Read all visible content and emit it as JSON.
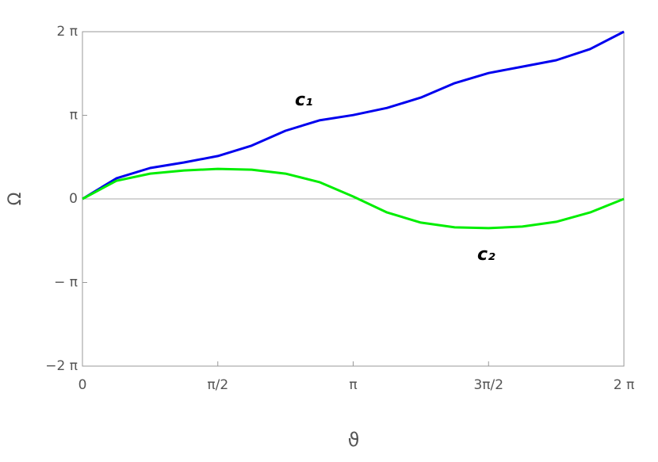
{
  "chart_data": {
    "type": "line",
    "x_label": "ϑ",
    "y_label": "Ω",
    "x": [
      0,
      0.3927,
      0.7854,
      1.1781,
      1.5708,
      1.9635,
      2.3562,
      2.7489,
      3.1416,
      3.5343,
      3.927,
      4.3197,
      4.7124,
      5.1051,
      5.4978,
      5.8905,
      6.2832
    ],
    "series": [
      {
        "color": "#0000ee",
        "values": [
          0,
          0.77,
          1.16,
          1.37,
          1.61,
          2.0,
          2.56,
          2.95,
          3.15,
          3.42,
          3.81,
          4.35,
          4.73,
          4.97,
          5.21,
          5.63,
          6.2832
        ]
      },
      {
        "color": "#00ee00",
        "values": [
          0,
          0.68,
          0.95,
          1.07,
          1.13,
          1.1,
          0.95,
          0.63,
          0.09,
          -0.51,
          -0.89,
          -1.07,
          -1.1,
          -1.04,
          -0.86,
          -0.51,
          0
        ]
      }
    ],
    "annotations": [
      "c₁",
      "c₂"
    ],
    "xlim": [
      0,
      6.2832
    ],
    "ylim": [
      -6.2832,
      6.2832
    ],
    "xticks": [
      0,
      {
        "value": 1.5708,
        "label": "π/2"
      },
      {
        "value": 3.1416,
        "label": "π"
      },
      {
        "value": 4.7124,
        "label": "3π/2"
      },
      {
        "value": 6.2832,
        "label": "2 π"
      }
    ],
    "yticks": [
      {
        "value": -6.2832,
        "label": "−2 π"
      },
      {
        "value": -3.1416,
        "label": "− π"
      },
      0,
      {
        "value": 3.1416,
        "label": "π"
      },
      {
        "value": 6.2832,
        "label": "2 π"
      }
    ]
  }
}
